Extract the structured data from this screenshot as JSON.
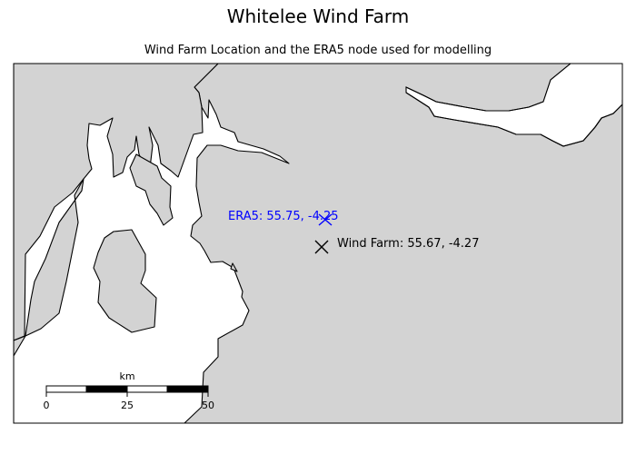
{
  "figure": {
    "title": "Whitelee Wind Farm",
    "subtitle": "Wind Farm Location and the ERA5 node used for modelling"
  },
  "markers": [
    {
      "id": "era5",
      "label": "ERA5: 55.75, -4.25",
      "color": "#0000ff",
      "lat": 55.75,
      "lon": -4.25
    },
    {
      "id": "wind-farm",
      "label": "Wind Farm: 55.67, -4.27",
      "color": "#000000",
      "lat": 55.67,
      "lon": -4.27
    }
  ],
  "scale_bar": {
    "unit": "km",
    "ticks": [
      "0",
      "25",
      "50"
    ]
  },
  "colors": {
    "land": "#d3d3d3",
    "sea": "#ffffff",
    "coast": "#000000"
  }
}
